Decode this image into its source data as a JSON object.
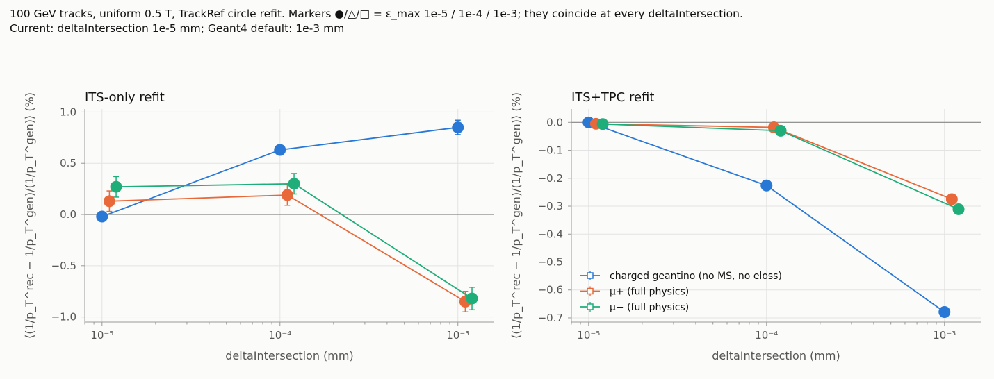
{
  "header": {
    "line1": "100 GeV tracks, uniform 0.5 T, TrackRef circle refit. Markers ●/△/□ = ε_max 1e-5 / 1e-4 / 1e-3; they coincide at every deltaIntersection.",
    "line2": "Current: deltaIntersection 1e-5 mm; Geant4 default: 1e-3 mm"
  },
  "colors": {
    "blue": "#2a78d6",
    "orange": "#e8683a",
    "green": "#1fae7a"
  },
  "chart_data": [
    {
      "type": "line",
      "title": "ITS-only refit",
      "xlabel": "deltaIntersection (mm)",
      "ylabel": "⟨(1/p_T^rec − 1/p_T^gen)/(1/p_T^gen)⟩ (%)",
      "xscale": "log",
      "ylim": [
        -1.05,
        1.03
      ],
      "xlim": [
        8e-06,
        0.0016
      ],
      "yticks": [
        1.0,
        0.5,
        0.0,
        -0.5,
        -1.0
      ],
      "ytick_labels": [
        "1.0",
        "0.5",
        "0.0",
        "−0.5",
        "−1.0"
      ],
      "xticks": [
        "10⁻⁵",
        "10⁻⁴",
        "10⁻³"
      ],
      "grid": true,
      "series": [
        {
          "name": "charged geantino (no MS, no eloss)",
          "color": "#2a78d6",
          "x": [
            1e-05,
            0.0001,
            0.001
          ],
          "y": [
            -0.02,
            0.63,
            0.85
          ],
          "err": [
            0.0,
            0.0,
            0.07
          ]
        },
        {
          "name": "μ+ (full physics)",
          "color": "#e8683a",
          "x": [
            1.1e-05,
            0.00011,
            0.0011
          ],
          "y": [
            0.13,
            0.19,
            -0.85
          ],
          "err": [
            0.1,
            0.1,
            0.1
          ]
        },
        {
          "name": "μ− (full physics)",
          "color": "#1fae7a",
          "x": [
            1.2e-05,
            0.00012,
            0.0012
          ],
          "y": [
            0.27,
            0.3,
            -0.82
          ],
          "err": [
            0.1,
            0.1,
            0.11
          ]
        }
      ]
    },
    {
      "type": "line",
      "title": "ITS+TPC refit",
      "xlabel": "deltaIntersection (mm)",
      "ylabel": "⟨(1/p_T^rec − 1/p_T^gen)/(1/p_T^gen)⟩ (%)",
      "xscale": "log",
      "ylim": [
        -0.715,
        0.048
      ],
      "xlim": [
        8e-06,
        0.0016
      ],
      "yticks": [
        0.0,
        -0.1,
        -0.2,
        -0.3,
        -0.4,
        -0.5,
        -0.6,
        -0.7
      ],
      "ytick_labels": [
        "0.0",
        "−0.1",
        "−0.2",
        "−0.3",
        "−0.4",
        "−0.5",
        "−0.6",
        "−0.7"
      ],
      "xticks": [
        "10⁻⁵",
        "10⁻⁴",
        "10⁻³"
      ],
      "grid": true,
      "legend": "lower-left",
      "series": [
        {
          "name": "charged geantino (no MS, no eloss)",
          "color": "#2a78d6",
          "x": [
            1e-05,
            0.0001,
            0.001
          ],
          "y": [
            0.0,
            -0.226,
            -0.679
          ],
          "err": [
            0.0,
            0.0,
            0.0
          ]
        },
        {
          "name": "μ+ (full physics)",
          "color": "#e8683a",
          "x": [
            1.1e-05,
            0.00011,
            0.0011
          ],
          "y": [
            -0.005,
            -0.018,
            -0.275
          ],
          "err": [
            0.01,
            0.01,
            0.01
          ]
        },
        {
          "name": "μ− (full physics)",
          "color": "#1fae7a",
          "x": [
            1.2e-05,
            0.00012,
            0.0012
          ],
          "y": [
            -0.006,
            -0.03,
            -0.311
          ],
          "err": [
            0.012,
            0.01,
            0.01
          ]
        }
      ]
    }
  ]
}
